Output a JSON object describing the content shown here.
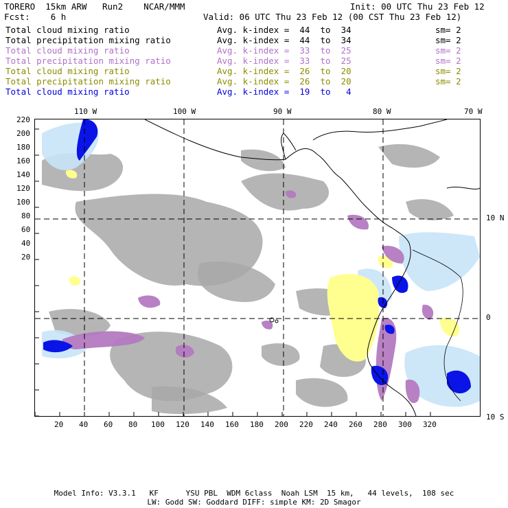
{
  "header": {
    "model_line": "TORERO  15km ARW   Run2    NCAR/MMM",
    "init": "Init: 00 UTC Thu 23 Feb 12",
    "fcst": "Fcst:    6 h",
    "valid": "Valid: 06 UTC Thu 23 Feb 12 (00 CST Thu 23 Feb 12)"
  },
  "legend": [
    {
      "label": "Total cloud mixing ratio",
      "k": "Avg. k-index =  44  to  34",
      "sm": "sm= 2",
      "color": "#000000"
    },
    {
      "label": "Total precipitation mixing ratio",
      "k": "Avg. k-index =  44  to  34",
      "sm": "sm= 2",
      "color": "#000000"
    },
    {
      "label": "Total cloud mixing ratio",
      "k": "Avg. k-index =  33  to  25",
      "sm": "sm= 2",
      "color": "#b070c8"
    },
    {
      "label": "Total precipitation mixing ratio",
      "k": "Avg. k-index =  33  to  25",
      "sm": "sm= 2",
      "color": "#b070c8"
    },
    {
      "label": "Total cloud mixing ratio",
      "k": "Avg. k-index =  26  to  20",
      "sm": "sm= 2",
      "color": "#8c8c00"
    },
    {
      "label": "Total precipitation mixing ratio",
      "k": "Avg. k-index =  26  to  20",
      "sm": "sm= 2",
      "color": "#8c8c00"
    },
    {
      "label": "Total cloud mixing ratio",
      "k": "Avg. k-index =  19  to   4",
      "sm": "",
      "color": "#0000e0"
    }
  ],
  "map": {
    "lon_labels": [
      "110 W",
      "100 W",
      "90 W",
      "80 W",
      "70 W"
    ],
    "lat_labels": [
      "10 N",
      "0",
      "10 S"
    ],
    "x_ticks": [
      "20",
      "40",
      "60",
      "80",
      "100",
      "120",
      "140",
      "160",
      "180",
      "200",
      "220",
      "240",
      "260",
      "280",
      "300",
      "320"
    ],
    "y_ticks": [
      "220",
      "200",
      "180",
      "160",
      "140",
      "120",
      "100",
      "80",
      "60",
      "40",
      "20"
    ],
    "colors": {
      "gray": "#a8a8a8",
      "purple": "#b47ac0",
      "yellow": "#ffff90",
      "lightblue": "#c8e4f8",
      "blue": "#0a14e6"
    }
  },
  "footer": {
    "line1": "Model Info: V3.3.1   KF      YSU PBL  WDM 6class  Noah LSM  15 km,   44 levels,  108 sec",
    "line2": "LW: Godd SW: Goddard DIFF: simple KM: 2D Smagor"
  }
}
